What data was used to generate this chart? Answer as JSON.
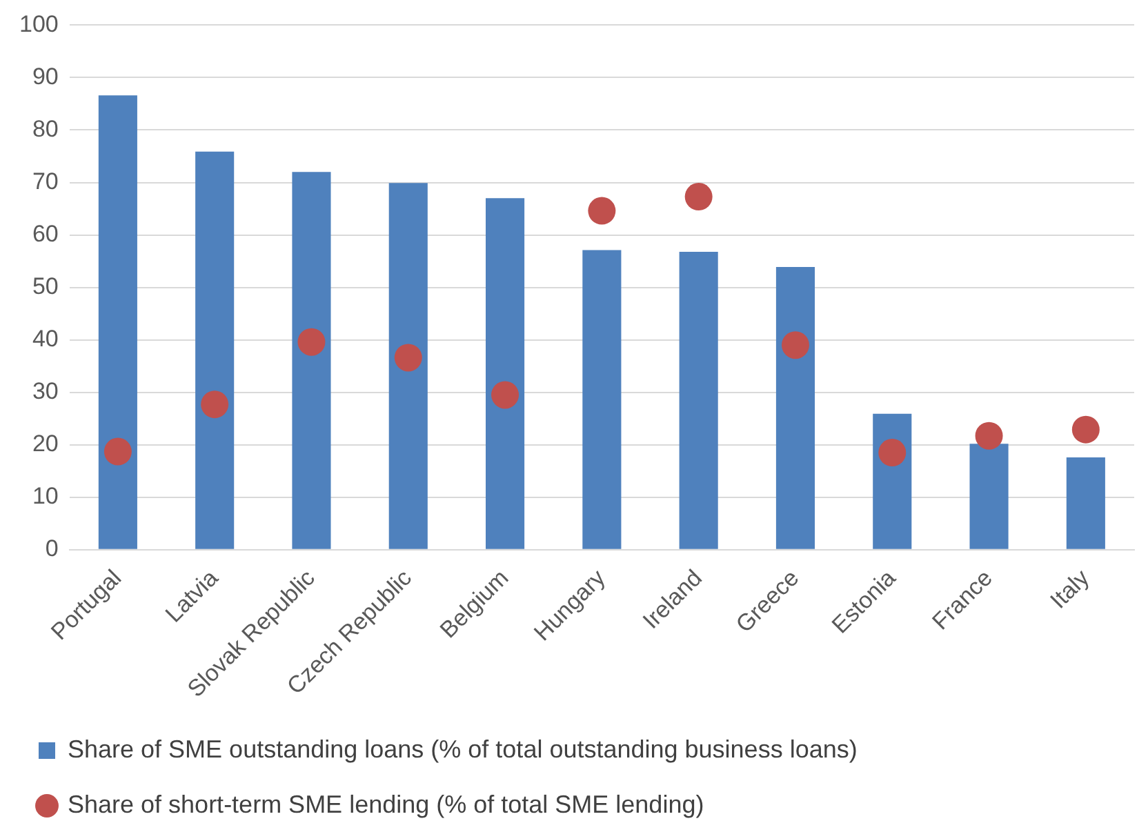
{
  "chart_data": {
    "type": "bar",
    "categories": [
      "Portugal",
      "Latvia",
      "Slovak Republic",
      "Czech Republic",
      "Belgium",
      "Hungary",
      "Ireland",
      "Greece",
      "Estonia",
      "France",
      "Italy"
    ],
    "series": [
      {
        "name": "Share of SME outstanding loans (% of total outstanding business loans)",
        "color": "#4f81bd",
        "values": [
          86.6,
          75.9,
          72.0,
          69.9,
          67.0,
          57.1,
          56.8,
          53.9,
          25.9,
          20.2,
          17.6
        ]
      },
      {
        "name": "Share of short-term SME lending (% of total SME lending)",
        "type": "scatter",
        "color": "#c0504d",
        "marker": "circle",
        "x": [
          "Portugal",
          "Latvia",
          "Slovak Republic",
          "Czech Republic",
          "Belgium",
          "Hungary",
          "Ireland",
          "Greece",
          "Estonia",
          "France",
          "Italy"
        ],
        "values": [
          18.7,
          27.7,
          39.6,
          36.6,
          29.5,
          64.6,
          67.3,
          39.0,
          18.5,
          21.7,
          22.9
        ]
      }
    ],
    "ylim": [
      0,
      100
    ],
    "yticks": [
      0,
      10,
      20,
      30,
      40,
      50,
      60,
      70,
      80,
      90,
      100
    ],
    "grid": "y",
    "legend": "bottom"
  }
}
